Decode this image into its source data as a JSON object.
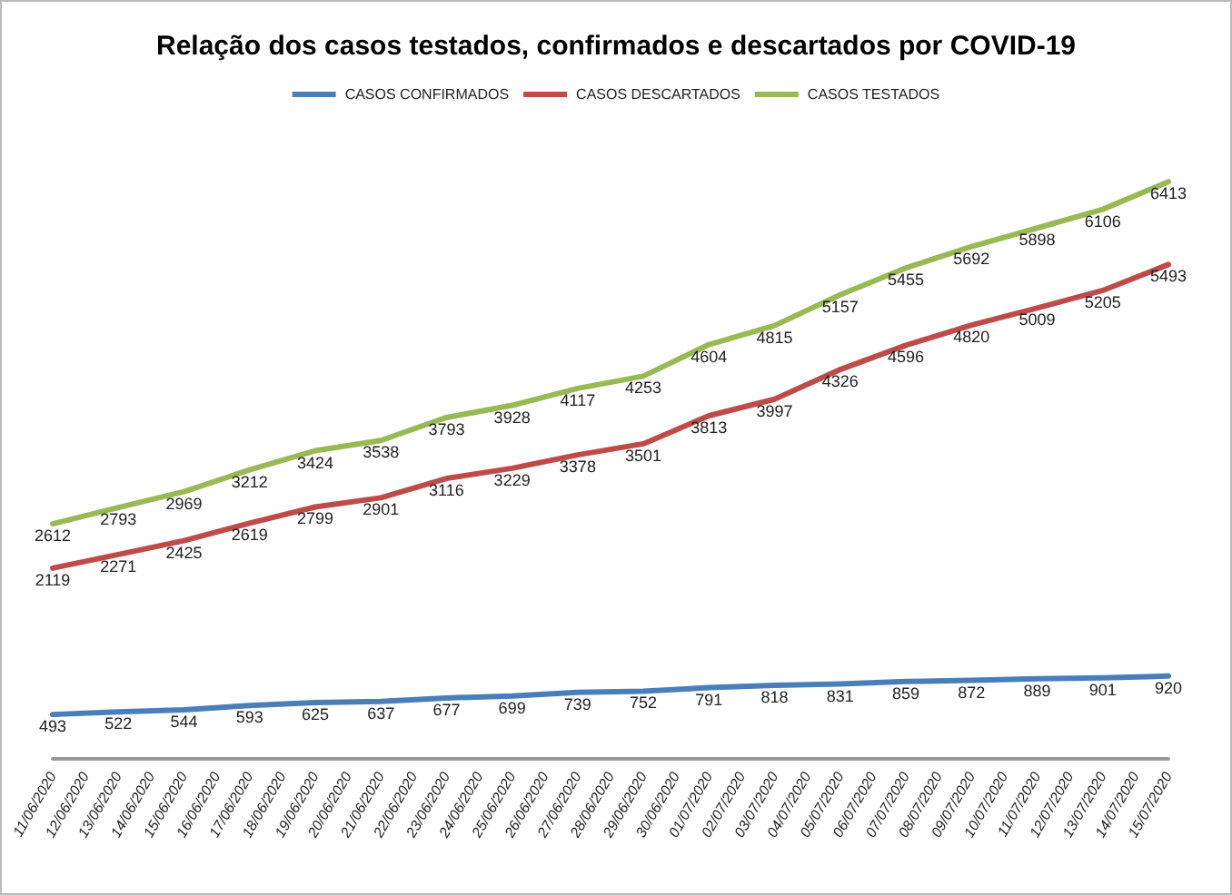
{
  "chart_data": {
    "type": "line",
    "title": "Relação dos casos testados, confirmados e descartados por COVID-19",
    "categories": [
      "11/06/2020",
      "12/06/2020",
      "13/06/2020",
      "14/06/2020",
      "15/06/2020",
      "16/06/2020",
      "17/06/2020",
      "18/06/2020",
      "19/06/2020",
      "20/06/2020",
      "21/06/2020",
      "22/06/2020",
      "23/06/2020",
      "24/06/2020",
      "25/06/2020",
      "26/06/2020",
      "27/06/2020",
      "28/06/2020",
      "29/06/2020",
      "30/06/2020",
      "01/07/2020",
      "02/07/2020",
      "03/07/2020",
      "04/07/2020",
      "05/07/2020",
      "06/07/2020",
      "07/07/2020",
      "08/07/2020",
      "09/07/2020",
      "10/07/2020",
      "11/07/2020",
      "12/07/2020",
      "13/07/2020",
      "14/07/2020",
      "15/07/2020"
    ],
    "series": [
      {
        "name": "CASOS CONFIRMADOS",
        "color": "#4a7ebb",
        "values": [
          493,
          null,
          522,
          null,
          544,
          null,
          593,
          null,
          625,
          null,
          637,
          null,
          677,
          null,
          699,
          null,
          739,
          null,
          752,
          null,
          791,
          null,
          818,
          null,
          831,
          null,
          859,
          null,
          872,
          null,
          889,
          null,
          901,
          null,
          920
        ]
      },
      {
        "name": "CASOS DESCARTADOS",
        "color": "#be4b48",
        "values": [
          2119,
          null,
          2271,
          null,
          2425,
          null,
          2619,
          null,
          2799,
          null,
          2901,
          null,
          3116,
          null,
          3229,
          null,
          3378,
          null,
          3501,
          null,
          3813,
          null,
          3997,
          null,
          4326,
          null,
          4596,
          null,
          4820,
          null,
          5009,
          null,
          5205,
          null,
          5493
        ]
      },
      {
        "name": "CASOS TESTADOS",
        "color": "#98b954",
        "values": [
          2612,
          null,
          2793,
          null,
          2969,
          null,
          3212,
          null,
          3424,
          null,
          3538,
          null,
          3793,
          null,
          3928,
          null,
          4117,
          null,
          4253,
          null,
          4604,
          null,
          4815,
          null,
          5157,
          null,
          5455,
          null,
          5692,
          null,
          5898,
          null,
          6106,
          null,
          6413
        ]
      }
    ],
    "data_labels": true,
    "legend": "top",
    "grid": false,
    "marker": "none",
    "line_style": "solid",
    "tick_labels": "x"
  }
}
